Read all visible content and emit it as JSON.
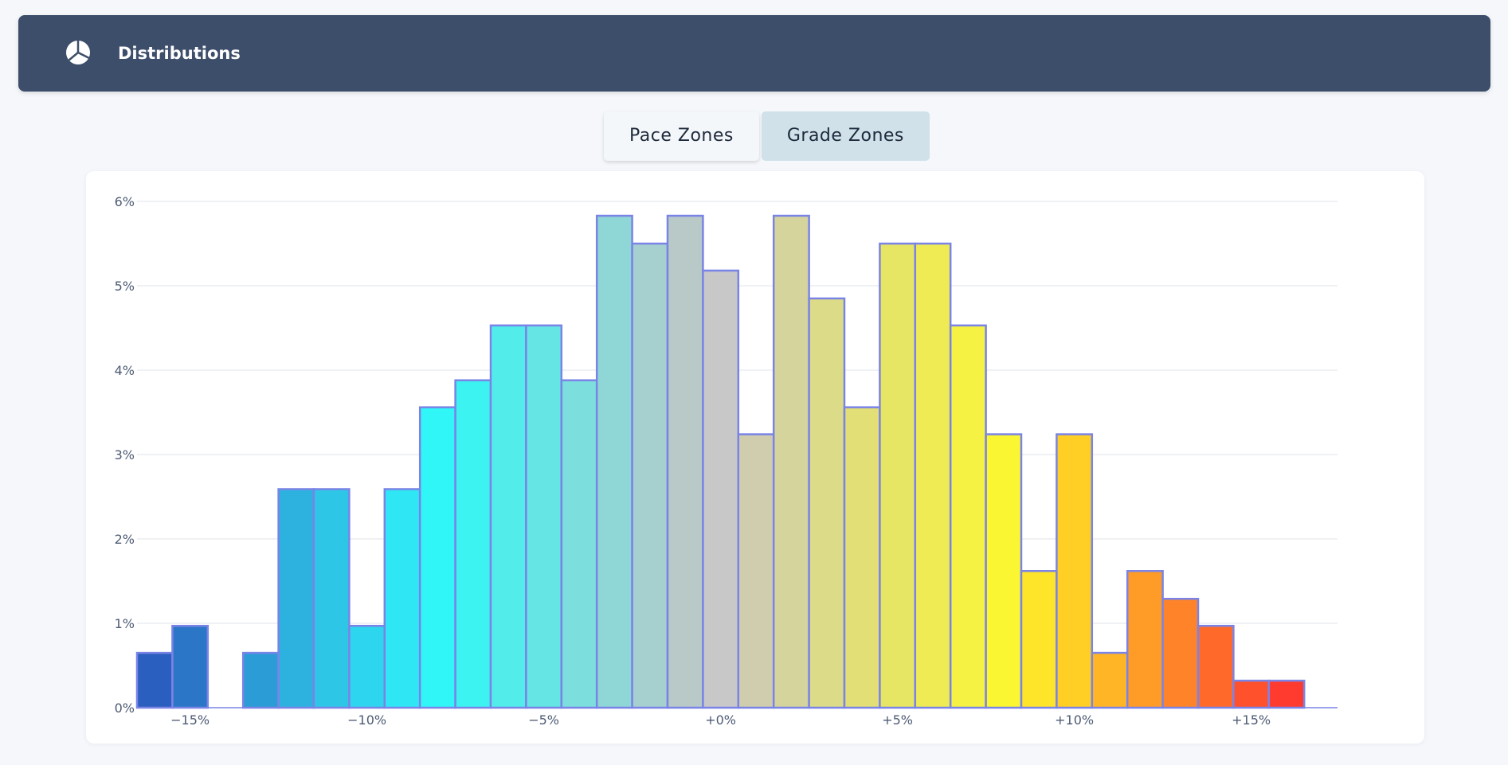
{
  "header": {
    "title": "Distributions",
    "icon": "pie-chart-icon"
  },
  "tabs": [
    {
      "label": "Pace Zones",
      "active": false
    },
    {
      "label": "Grade Zones",
      "active": true
    }
  ],
  "chart_data": {
    "type": "bar",
    "title": "",
    "xlabel": "",
    "ylabel": "",
    "grid": true,
    "legend": "none",
    "bar_outline_color": "#7a84e6",
    "ylim": [
      0,
      6
    ],
    "y_ticks": [
      "0%",
      "1%",
      "2%",
      "3%",
      "4%",
      "5%",
      "6%"
    ],
    "x_ticks": [
      "−15%",
      "−10%",
      "−5%",
      "+0%",
      "+5%",
      "+10%",
      "+15%"
    ],
    "x_tick_values": [
      -15,
      -10,
      -5,
      0,
      5,
      10,
      15
    ],
    "bins": [
      {
        "x": -16,
        "value": 0.65,
        "color": "#2a5fbf"
      },
      {
        "x": -15,
        "value": 0.97,
        "color": "#2b76c7"
      },
      {
        "x": -14,
        "value": 0,
        "color": "#2b8ccf"
      },
      {
        "x": -13,
        "value": 0.65,
        "color": "#2c9cd6"
      },
      {
        "x": -12,
        "value": 2.59,
        "color": "#2db2df"
      },
      {
        "x": -11,
        "value": 2.59,
        "color": "#2ec6e7"
      },
      {
        "x": -10,
        "value": 0.97,
        "color": "#2ed5ee"
      },
      {
        "x": -9,
        "value": 2.59,
        "color": "#2fe6f5"
      },
      {
        "x": -8,
        "value": 3.56,
        "color": "#31f6f8"
      },
      {
        "x": -7,
        "value": 3.88,
        "color": "#3cf3f2"
      },
      {
        "x": -6,
        "value": 4.53,
        "color": "#52eceb"
      },
      {
        "x": -5,
        "value": 4.53,
        "color": "#65e5e4"
      },
      {
        "x": -4,
        "value": 3.88,
        "color": "#7cdedd"
      },
      {
        "x": -3,
        "value": 5.83,
        "color": "#8fd6d6"
      },
      {
        "x": -2,
        "value": 5.5,
        "color": "#a5d0cf"
      },
      {
        "x": -1,
        "value": 5.83,
        "color": "#b8c9c8"
      },
      {
        "x": 0,
        "value": 5.18,
        "color": "#c8c8c8"
      },
      {
        "x": 1,
        "value": 3.24,
        "color": "#cfcdae"
      },
      {
        "x": 2,
        "value": 5.83,
        "color": "#d4d49c"
      },
      {
        "x": 3,
        "value": 4.85,
        "color": "#dbdb88"
      },
      {
        "x": 4,
        "value": 3.56,
        "color": "#e1df75"
      },
      {
        "x": 5,
        "value": 5.5,
        "color": "#e7e564"
      },
      {
        "x": 6,
        "value": 5.5,
        "color": "#eeeb55"
      },
      {
        "x": 7,
        "value": 4.53,
        "color": "#f5f243"
      },
      {
        "x": 8,
        "value": 3.24,
        "color": "#fbf632"
      },
      {
        "x": 9,
        "value": 1.62,
        "color": "#ffe52a"
      },
      {
        "x": 10,
        "value": 3.24,
        "color": "#ffcf26"
      },
      {
        "x": 11,
        "value": 0.65,
        "color": "#ffb526"
      },
      {
        "x": 12,
        "value": 1.62,
        "color": "#ff9c27"
      },
      {
        "x": 13,
        "value": 1.29,
        "color": "#ff8328"
      },
      {
        "x": 14,
        "value": 0.97,
        "color": "#ff6a2a"
      },
      {
        "x": 15,
        "value": 0.32,
        "color": "#ff512c"
      },
      {
        "x": 16,
        "value": 0.32,
        "color": "#ff3a2e"
      }
    ]
  }
}
